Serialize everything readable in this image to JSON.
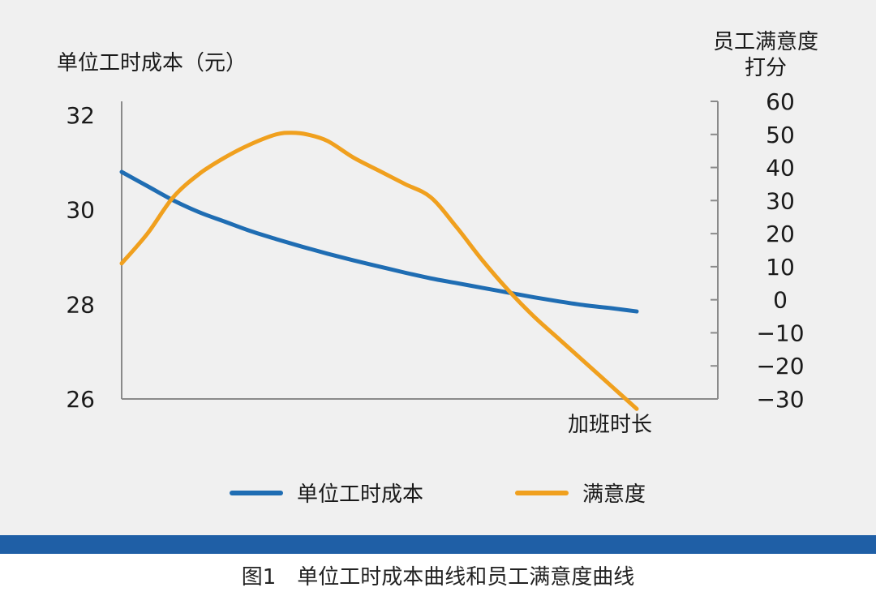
{
  "chart_data": {
    "type": "line",
    "title": "",
    "xlabel": "加班时长",
    "ylabel_left": "单位工时成本（元）",
    "ylabel_right": [
      "员工满意度",
      "打分"
    ],
    "ylim_left": [
      26,
      32
    ],
    "ylim_right": [
      -30,
      60
    ],
    "yticks_left": [
      "26",
      "28",
      "30",
      "32"
    ],
    "yticks_right": [
      "60",
      "50",
      "40",
      "30",
      "20",
      "10",
      "0",
      "−10",
      "−20",
      "−30"
    ],
    "yticks_right_values": [
      60,
      50,
      40,
      30,
      20,
      10,
      0,
      -10,
      -20,
      -30
    ],
    "yticks_left_values": [
      26,
      28,
      30,
      32
    ],
    "xlim": [
      0,
      1
    ],
    "grid": false,
    "legend_position": "bottom-center",
    "series": [
      {
        "name": "单位工时成本",
        "axis": "left",
        "color": "#1f6db3",
        "x": [
          0,
          0.05,
          0.1,
          0.15,
          0.2,
          0.25,
          0.3,
          0.35,
          0.4,
          0.45,
          0.5,
          0.55,
          0.6,
          0.65,
          0.7,
          0.75,
          0.8,
          0.85,
          0.9,
          0.95,
          1.0
        ],
        "values": [
          30.8,
          30.5,
          30.2,
          29.95,
          29.75,
          29.55,
          29.38,
          29.22,
          29.07,
          28.93,
          28.8,
          28.67,
          28.55,
          28.45,
          28.35,
          28.25,
          28.15,
          28.06,
          27.98,
          27.92,
          27.85
        ]
      },
      {
        "name": "满意度",
        "axis": "right",
        "color": "#f0a01e",
        "x": [
          0,
          0.05,
          0.1,
          0.15,
          0.2,
          0.25,
          0.3,
          0.33,
          0.36,
          0.4,
          0.45,
          0.5,
          0.55,
          0.6,
          0.65,
          0.7,
          0.75,
          0.8,
          0.85,
          0.9,
          0.95,
          1.0
        ],
        "values": [
          11,
          20,
          31,
          38,
          43,
          47,
          50,
          50.5,
          50,
          48,
          43,
          39,
          35,
          31,
          22,
          12,
          3,
          -5,
          -12,
          -19,
          -26,
          -33
        ]
      }
    ]
  },
  "caption": "图1　单位工时成本曲线和员工满意度曲线",
  "colors": {
    "panel_background": "#f0f0f0",
    "axis": "#8a8a8a",
    "stripe": "#1f5fa6",
    "cost_line": "#1f6db3",
    "satisfaction_line": "#f0a01e"
  }
}
